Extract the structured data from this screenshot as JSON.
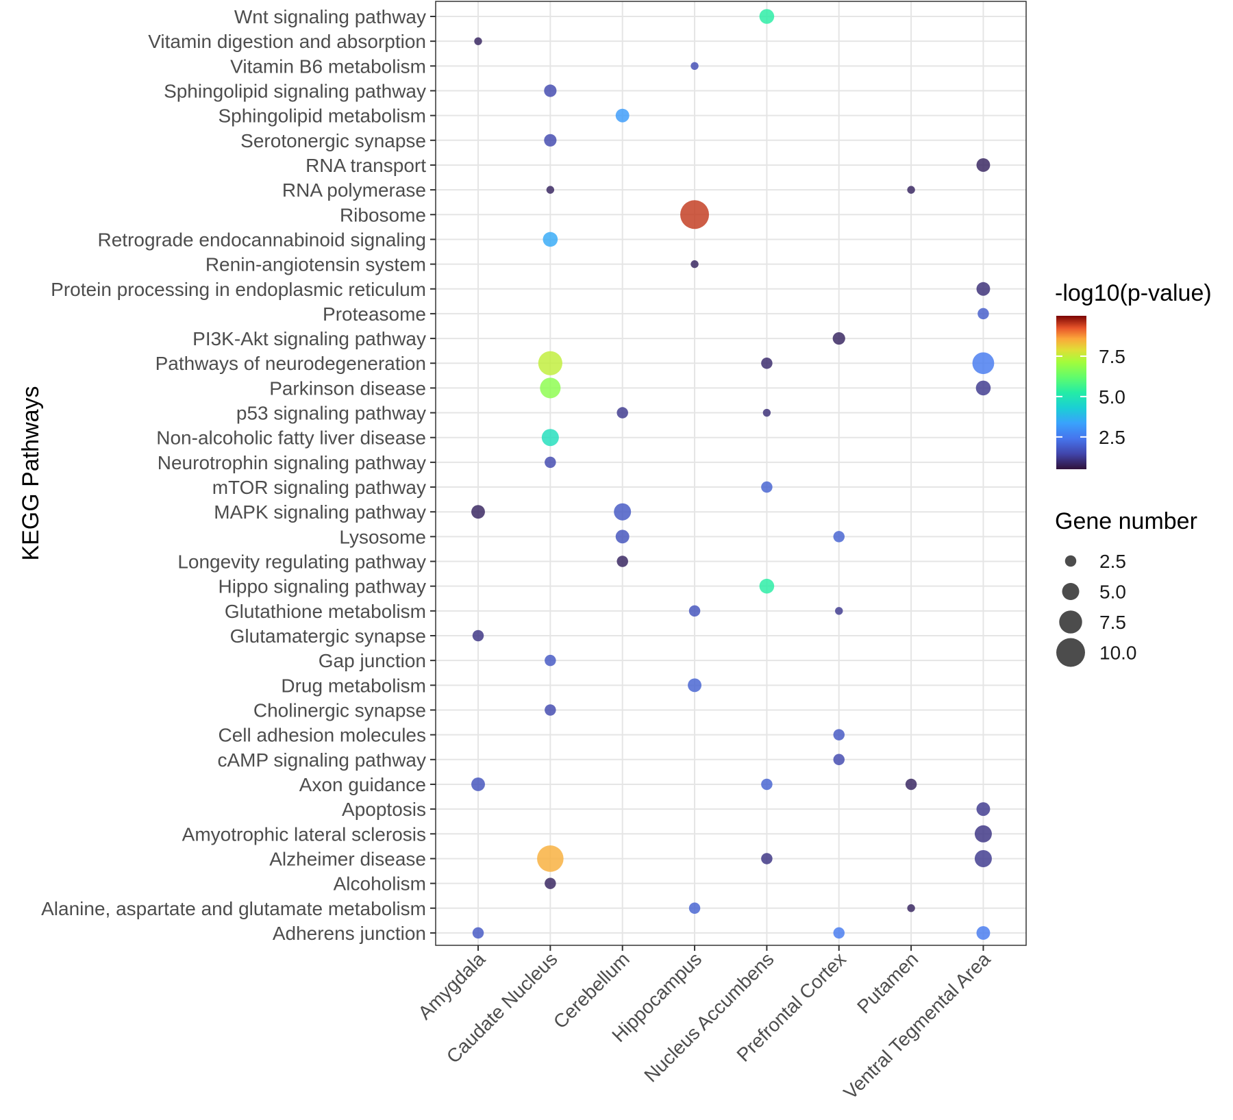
{
  "chart_data": {
    "type": "scatter",
    "ylabel": "KEGG Pathways",
    "xlabel": "",
    "x_categories": [
      "Amygdala",
      "Caudate Nucleus",
      "Cerebellum",
      "Hippocampus",
      "Nucleus Accumbens",
      "Prefrontal Cortex",
      "Putamen",
      "Ventral Tegmental Area"
    ],
    "y_categories": [
      "Wnt signaling pathway",
      "Vitamin digestion and absorption",
      "Vitamin B6 metabolism",
      "Sphingolipid signaling pathway",
      "Sphingolipid metabolism",
      "Serotonergic synapse",
      "RNA transport",
      "RNA polymerase",
      "Ribosome",
      "Retrograde endocannabinoid signaling",
      "Renin-angiotensin system",
      "Protein processing in endoplasmic reticulum",
      "Proteasome",
      "PI3K-Akt signaling pathway",
      "Pathways of neurodegeneration",
      "Parkinson disease",
      "p53 signaling pathway",
      "Non-alcoholic fatty liver disease",
      "Neurotrophin signaling pathway",
      "mTOR signaling pathway",
      "MAPK signaling pathway",
      "Lysosome",
      "Longevity regulating pathway",
      "Hippo signaling pathway",
      "Glutathione metabolism",
      "Glutamatergic synapse",
      "Gap junction",
      "Drug metabolism",
      "Cholinergic synapse",
      "Cell adhesion molecules",
      "cAMP signaling pathway",
      "Axon guidance",
      "Apoptosis",
      "Amyotrophic lateral sclerosis",
      "Alzheimer disease",
      "Alcoholism",
      "Alanine, aspartate and glutamate metabolism",
      "Adherens junction"
    ],
    "color_legend": {
      "title": "-log10(p-value)",
      "range": [
        0.5,
        10
      ],
      "ticks": [
        2.5,
        5.0,
        7.5
      ],
      "tick_labels": [
        "2.5",
        "5.0",
        "7.5"
      ]
    },
    "size_legend": {
      "title": "Gene number",
      "values": [
        2.5,
        5.0,
        7.5,
        10.0
      ],
      "labels": [
        "2.5",
        "5.0",
        "7.5",
        "10.0"
      ]
    },
    "points": [
      {
        "pathway": "Wnt signaling pathway",
        "region": "Nucleus Accumbens",
        "neglog10p": 5.3,
        "genes": 4
      },
      {
        "pathway": "Vitamin digestion and absorption",
        "region": "Amygdala",
        "neglog10p": 0.8,
        "genes": 1
      },
      {
        "pathway": "Vitamin B6 metabolism",
        "region": "Hippocampus",
        "neglog10p": 1.6,
        "genes": 1
      },
      {
        "pathway": "Sphingolipid signaling pathway",
        "region": "Caudate Nucleus",
        "neglog10p": 1.5,
        "genes": 3
      },
      {
        "pathway": "Sphingolipid metabolism",
        "region": "Cerebellum",
        "neglog10p": 3.2,
        "genes": 3.5
      },
      {
        "pathway": "Serotonergic synapse",
        "region": "Caudate Nucleus",
        "neglog10p": 1.5,
        "genes": 3
      },
      {
        "pathway": "RNA transport",
        "region": "Ventral Tegmental Area",
        "neglog10p": 0.8,
        "genes": 3.5
      },
      {
        "pathway": "RNA polymerase",
        "region": "Caudate Nucleus",
        "neglog10p": 0.8,
        "genes": 1
      },
      {
        "pathway": "RNA polymerase",
        "region": "Putamen",
        "neglog10p": 0.8,
        "genes": 1
      },
      {
        "pathway": "Ribosome",
        "region": "Hippocampus",
        "neglog10p": 9.5,
        "genes": 10
      },
      {
        "pathway": "Retrograde endocannabinoid signaling",
        "region": "Caudate Nucleus",
        "neglog10p": 3.5,
        "genes": 4
      },
      {
        "pathway": "Renin-angiotensin system",
        "region": "Hippocampus",
        "neglog10p": 0.8,
        "genes": 1
      },
      {
        "pathway": "Protein processing in endoplasmic reticulum",
        "region": "Ventral Tegmental Area",
        "neglog10p": 1.0,
        "genes": 3.5
      },
      {
        "pathway": "Proteasome",
        "region": "Ventral Tegmental Area",
        "neglog10p": 1.9,
        "genes": 2.5
      },
      {
        "pathway": "PI3K-Akt signaling pathway",
        "region": "Prefrontal Cortex",
        "neglog10p": 0.8,
        "genes": 3
      },
      {
        "pathway": "Pathways of neurodegeneration",
        "region": "Caudate Nucleus",
        "neglog10p": 7.5,
        "genes": 8
      },
      {
        "pathway": "Pathways of neurodegeneration",
        "region": "Nucleus Accumbens",
        "neglog10p": 0.9,
        "genes": 2.5
      },
      {
        "pathway": "Pathways of neurodegeneration",
        "region": "Ventral Tegmental Area",
        "neglog10p": 2.5,
        "genes": 7
      },
      {
        "pathway": "Parkinson disease",
        "region": "Caudate Nucleus",
        "neglog10p": 6.8,
        "genes": 6.5
      },
      {
        "pathway": "Parkinson disease",
        "region": "Ventral Tegmental Area",
        "neglog10p": 1.2,
        "genes": 4
      },
      {
        "pathway": "p53 signaling pathway",
        "region": "Cerebellum",
        "neglog10p": 1.2,
        "genes": 2.5
      },
      {
        "pathway": "p53 signaling pathway",
        "region": "Nucleus Accumbens",
        "neglog10p": 1.0,
        "genes": 1
      },
      {
        "pathway": "Non-alcoholic fatty liver disease",
        "region": "Caudate Nucleus",
        "neglog10p": 4.8,
        "genes": 5
      },
      {
        "pathway": "Neurotrophin signaling pathway",
        "region": "Caudate Nucleus",
        "neglog10p": 1.5,
        "genes": 2.5
      },
      {
        "pathway": "mTOR signaling pathway",
        "region": "Nucleus Accumbens",
        "neglog10p": 2.0,
        "genes": 2.5
      },
      {
        "pathway": "MAPK signaling pathway",
        "region": "Amygdala",
        "neglog10p": 0.8,
        "genes": 3.5
      },
      {
        "pathway": "MAPK signaling pathway",
        "region": "Cerebellum",
        "neglog10p": 1.8,
        "genes": 5
      },
      {
        "pathway": "Lysosome",
        "region": "Cerebellum",
        "neglog10p": 1.7,
        "genes": 3.5
      },
      {
        "pathway": "Lysosome",
        "region": "Prefrontal Cortex",
        "neglog10p": 2.0,
        "genes": 2.5
      },
      {
        "pathway": "Longevity regulating pathway",
        "region": "Cerebellum",
        "neglog10p": 0.8,
        "genes": 2.5
      },
      {
        "pathway": "Hippo signaling pathway",
        "region": "Nucleus Accumbens",
        "neglog10p": 5.3,
        "genes": 4
      },
      {
        "pathway": "Glutathione metabolism",
        "region": "Hippocampus",
        "neglog10p": 1.7,
        "genes": 2.5
      },
      {
        "pathway": "Glutathione metabolism",
        "region": "Prefrontal Cortex",
        "neglog10p": 1.2,
        "genes": 1
      },
      {
        "pathway": "Glutamatergic synapse",
        "region": "Amygdala",
        "neglog10p": 1.1,
        "genes": 2.5
      },
      {
        "pathway": "Gap junction",
        "region": "Caudate Nucleus",
        "neglog10p": 1.8,
        "genes": 2.5
      },
      {
        "pathway": "Drug metabolism",
        "region": "Hippocampus",
        "neglog10p": 2.0,
        "genes": 3.5
      },
      {
        "pathway": "Cholinergic synapse",
        "region": "Caudate Nucleus",
        "neglog10p": 1.5,
        "genes": 2.5
      },
      {
        "pathway": "Cell adhesion molecules",
        "region": "Prefrontal Cortex",
        "neglog10p": 1.8,
        "genes": 2.5
      },
      {
        "pathway": "cAMP signaling pathway",
        "region": "Prefrontal Cortex",
        "neglog10p": 1.5,
        "genes": 2.5
      },
      {
        "pathway": "Axon guidance",
        "region": "Amygdala",
        "neglog10p": 1.7,
        "genes": 3.5
      },
      {
        "pathway": "Axon guidance",
        "region": "Nucleus Accumbens",
        "neglog10p": 2.0,
        "genes": 2.5
      },
      {
        "pathway": "Axon guidance",
        "region": "Putamen",
        "neglog10p": 0.8,
        "genes": 2.5
      },
      {
        "pathway": "Apoptosis",
        "region": "Ventral Tegmental Area",
        "neglog10p": 1.2,
        "genes": 3.5
      },
      {
        "pathway": "Amyotrophic lateral sclerosis",
        "region": "Ventral Tegmental Area",
        "neglog10p": 1.1,
        "genes": 5
      },
      {
        "pathway": "Alzheimer disease",
        "region": "Caudate Nucleus",
        "neglog10p": 8.5,
        "genes": 9
      },
      {
        "pathway": "Alzheimer disease",
        "region": "Nucleus Accumbens",
        "neglog10p": 1.1,
        "genes": 2.5
      },
      {
        "pathway": "Alzheimer disease",
        "region": "Ventral Tegmental Area",
        "neglog10p": 1.2,
        "genes": 5
      },
      {
        "pathway": "Alcoholism",
        "region": "Caudate Nucleus",
        "neglog10p": 0.8,
        "genes": 2.5
      },
      {
        "pathway": "Alanine, aspartate and glutamate metabolism",
        "region": "Hippocampus",
        "neglog10p": 2.0,
        "genes": 2.5
      },
      {
        "pathway": "Alanine, aspartate and glutamate metabolism",
        "region": "Putamen",
        "neglog10p": 0.8,
        "genes": 1
      },
      {
        "pathway": "Adherens junction",
        "region": "Amygdala",
        "neglog10p": 1.8,
        "genes": 2.5
      },
      {
        "pathway": "Adherens junction",
        "region": "Prefrontal Cortex",
        "neglog10p": 2.5,
        "genes": 2.5
      },
      {
        "pathway": "Adherens junction",
        "region": "Ventral Tegmental Area",
        "neglog10p": 2.5,
        "genes": 3.5
      }
    ]
  }
}
